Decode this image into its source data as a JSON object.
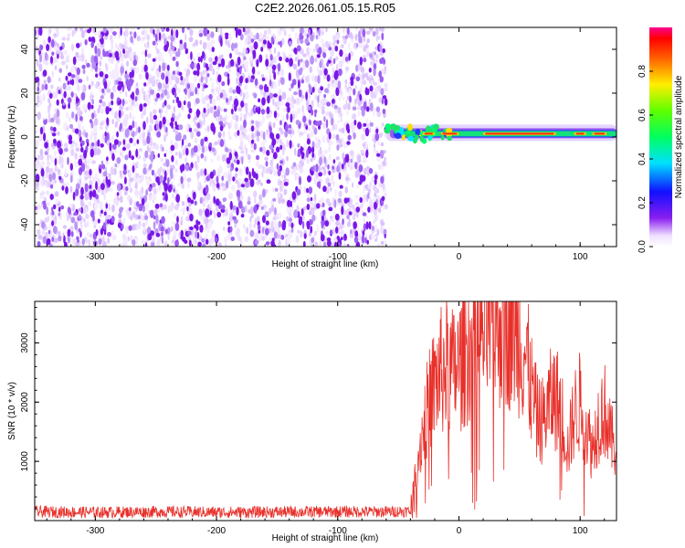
{
  "figure_title": "C2E2.2026.061.05.15.R05",
  "colors": {
    "snr_line": "#e8302a",
    "ridge_core": "#ff2a1a",
    "noise_purple": "#7a18e8",
    "axis": "#000000"
  },
  "chart_data": [
    {
      "type": "heatmap",
      "title": "C2E2.2026.061.05.15.R05",
      "xlabel": "Height of straight line (km)",
      "ylabel": "Frequency (Hz)",
      "xlim": [
        -350,
        130
      ],
      "ylim": [
        -50,
        50
      ],
      "x_ticks": [
        -300,
        -200,
        -100,
        0,
        100
      ],
      "y_ticks": [
        -40,
        -20,
        0,
        20,
        40
      ],
      "noise_region_x": [
        -350,
        -60
      ],
      "ridge_start_x": -60,
      "ridge_frequency_hz": 1.5,
      "colorbar": {
        "label": "Normalized spectral amplitude",
        "range": [
          0,
          1
        ],
        "ticks": [
          "0.0",
          "0.2",
          "0.4",
          "0.6",
          "0.8"
        ],
        "colormap": "rainbow"
      }
    },
    {
      "type": "line",
      "xlabel": "Height of straight line (km)",
      "ylabel": "SNR (10 * v/v)",
      "xlim": [
        -350,
        130
      ],
      "ylim": [
        0,
        3700
      ],
      "x_ticks": [
        -300,
        -200,
        -100,
        0,
        100
      ],
      "y_ticks": [
        1000,
        2000,
        3000
      ],
      "series": [
        {
          "name": "SNR",
          "x": [
            -350,
            -300,
            -250,
            -200,
            -150,
            -100,
            -60,
            -40,
            -35,
            -30,
            -25,
            -20,
            -15,
            -10,
            -5,
            0,
            10,
            20,
            30,
            40,
            45,
            50,
            55,
            60,
            65,
            70,
            75,
            80,
            85,
            90,
            95,
            100,
            105,
            110,
            115,
            120,
            125,
            130
          ],
          "values": [
            150,
            140,
            150,
            140,
            145,
            150,
            150,
            160,
            900,
            1500,
            2000,
            2300,
            2500,
            2600,
            2500,
            2600,
            3000,
            3200,
            3300,
            3350,
            3250,
            3100,
            2800,
            2200,
            1700,
            1700,
            2000,
            2100,
            1800,
            1200,
            1800,
            2000,
            1600,
            1200,
            1700,
            1900,
            1400,
            1200
          ]
        }
      ]
    }
  ]
}
